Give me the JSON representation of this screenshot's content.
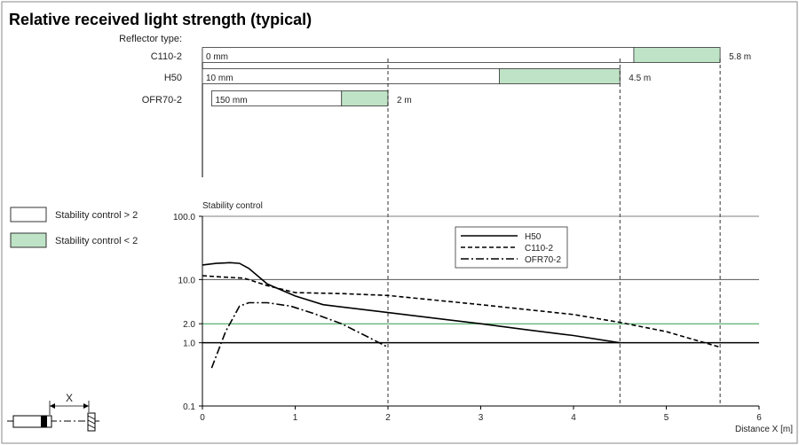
{
  "title": "Relative received light strength (typical)",
  "reflector_label": "Reflector type:",
  "legend_boxes": [
    {
      "label": "Stability control > 2",
      "color": "#ffffff"
    },
    {
      "label": "Stability control < 2",
      "color": "#bfe3c6"
    }
  ],
  "chart_data": [
    {
      "type": "bar",
      "orientation": "horizontal",
      "categories": [
        "C110-2",
        "H50",
        "OFR70-2"
      ],
      "series": [
        {
          "name": "Stability control > 2",
          "color": "#ffffff",
          "ranges": [
            [
              0,
              4.65
            ],
            [
              0,
              3.2
            ],
            [
              0.1,
              1.5
            ]
          ]
        },
        {
          "name": "Stability control < 2",
          "color": "#bfe3c6",
          "ranges": [
            [
              4.65,
              5.58
            ],
            [
              3.2,
              4.5
            ],
            [
              1.5,
              2.0
            ]
          ]
        }
      ],
      "start_labels": [
        "0 mm",
        "10 mm",
        "150 mm"
      ],
      "end_labels": [
        "5.8 m",
        "4.5 m",
        "2 m"
      ],
      "end_values": [
        5.58,
        4.5,
        2.0
      ]
    },
    {
      "type": "line",
      "ylabel": "Stability control",
      "xlabel": "Distance X [m]",
      "xlim": [
        0,
        6
      ],
      "ylim": [
        0.1,
        100
      ],
      "yscale": "log",
      "x_ticks": [
        0,
        1,
        2,
        3,
        4,
        5,
        6
      ],
      "y_ticks": [
        "0.1",
        "1.0",
        "2.0",
        "10.0",
        "100.0"
      ],
      "y_tick_values": [
        0.1,
        1,
        2,
        10,
        100
      ],
      "reference_lines": [
        {
          "y": 10,
          "color": "#555555"
        },
        {
          "y": 2,
          "color": "#2e9e4a"
        },
        {
          "y": 1,
          "color": "#000000"
        }
      ],
      "series": [
        {
          "name": "H50",
          "style": "solid",
          "x": [
            0,
            0.15,
            0.3,
            0.4,
            0.5,
            0.7,
            1.0,
            1.3,
            2.0,
            3.0,
            3.5,
            4.0,
            4.5
          ],
          "y": [
            17,
            18,
            18.5,
            18,
            15,
            8.5,
            5.5,
            4.0,
            3.0,
            2.0,
            1.6,
            1.3,
            1.0
          ]
        },
        {
          "name": "C110-2",
          "style": "dashed",
          "x": [
            0,
            0.2,
            0.45,
            0.7,
            1.0,
            1.5,
            2.0,
            3.0,
            4.0,
            4.5,
            5.0,
            5.58
          ],
          "y": [
            11.5,
            11,
            10.5,
            8.0,
            6.2,
            6.0,
            5.6,
            4.0,
            2.8,
            2.1,
            1.5,
            0.85
          ]
        },
        {
          "name": "OFR70-2",
          "style": "dashdot",
          "x": [
            0.1,
            0.25,
            0.4,
            0.5,
            0.7,
            0.95,
            1.2,
            1.5,
            1.8,
            2.0
          ],
          "y": [
            0.4,
            1.5,
            3.8,
            4.3,
            4.3,
            3.8,
            2.9,
            2.0,
            1.2,
            0.85
          ]
        }
      ],
      "legend_position": "top-right"
    }
  ],
  "diagram_label": "X"
}
